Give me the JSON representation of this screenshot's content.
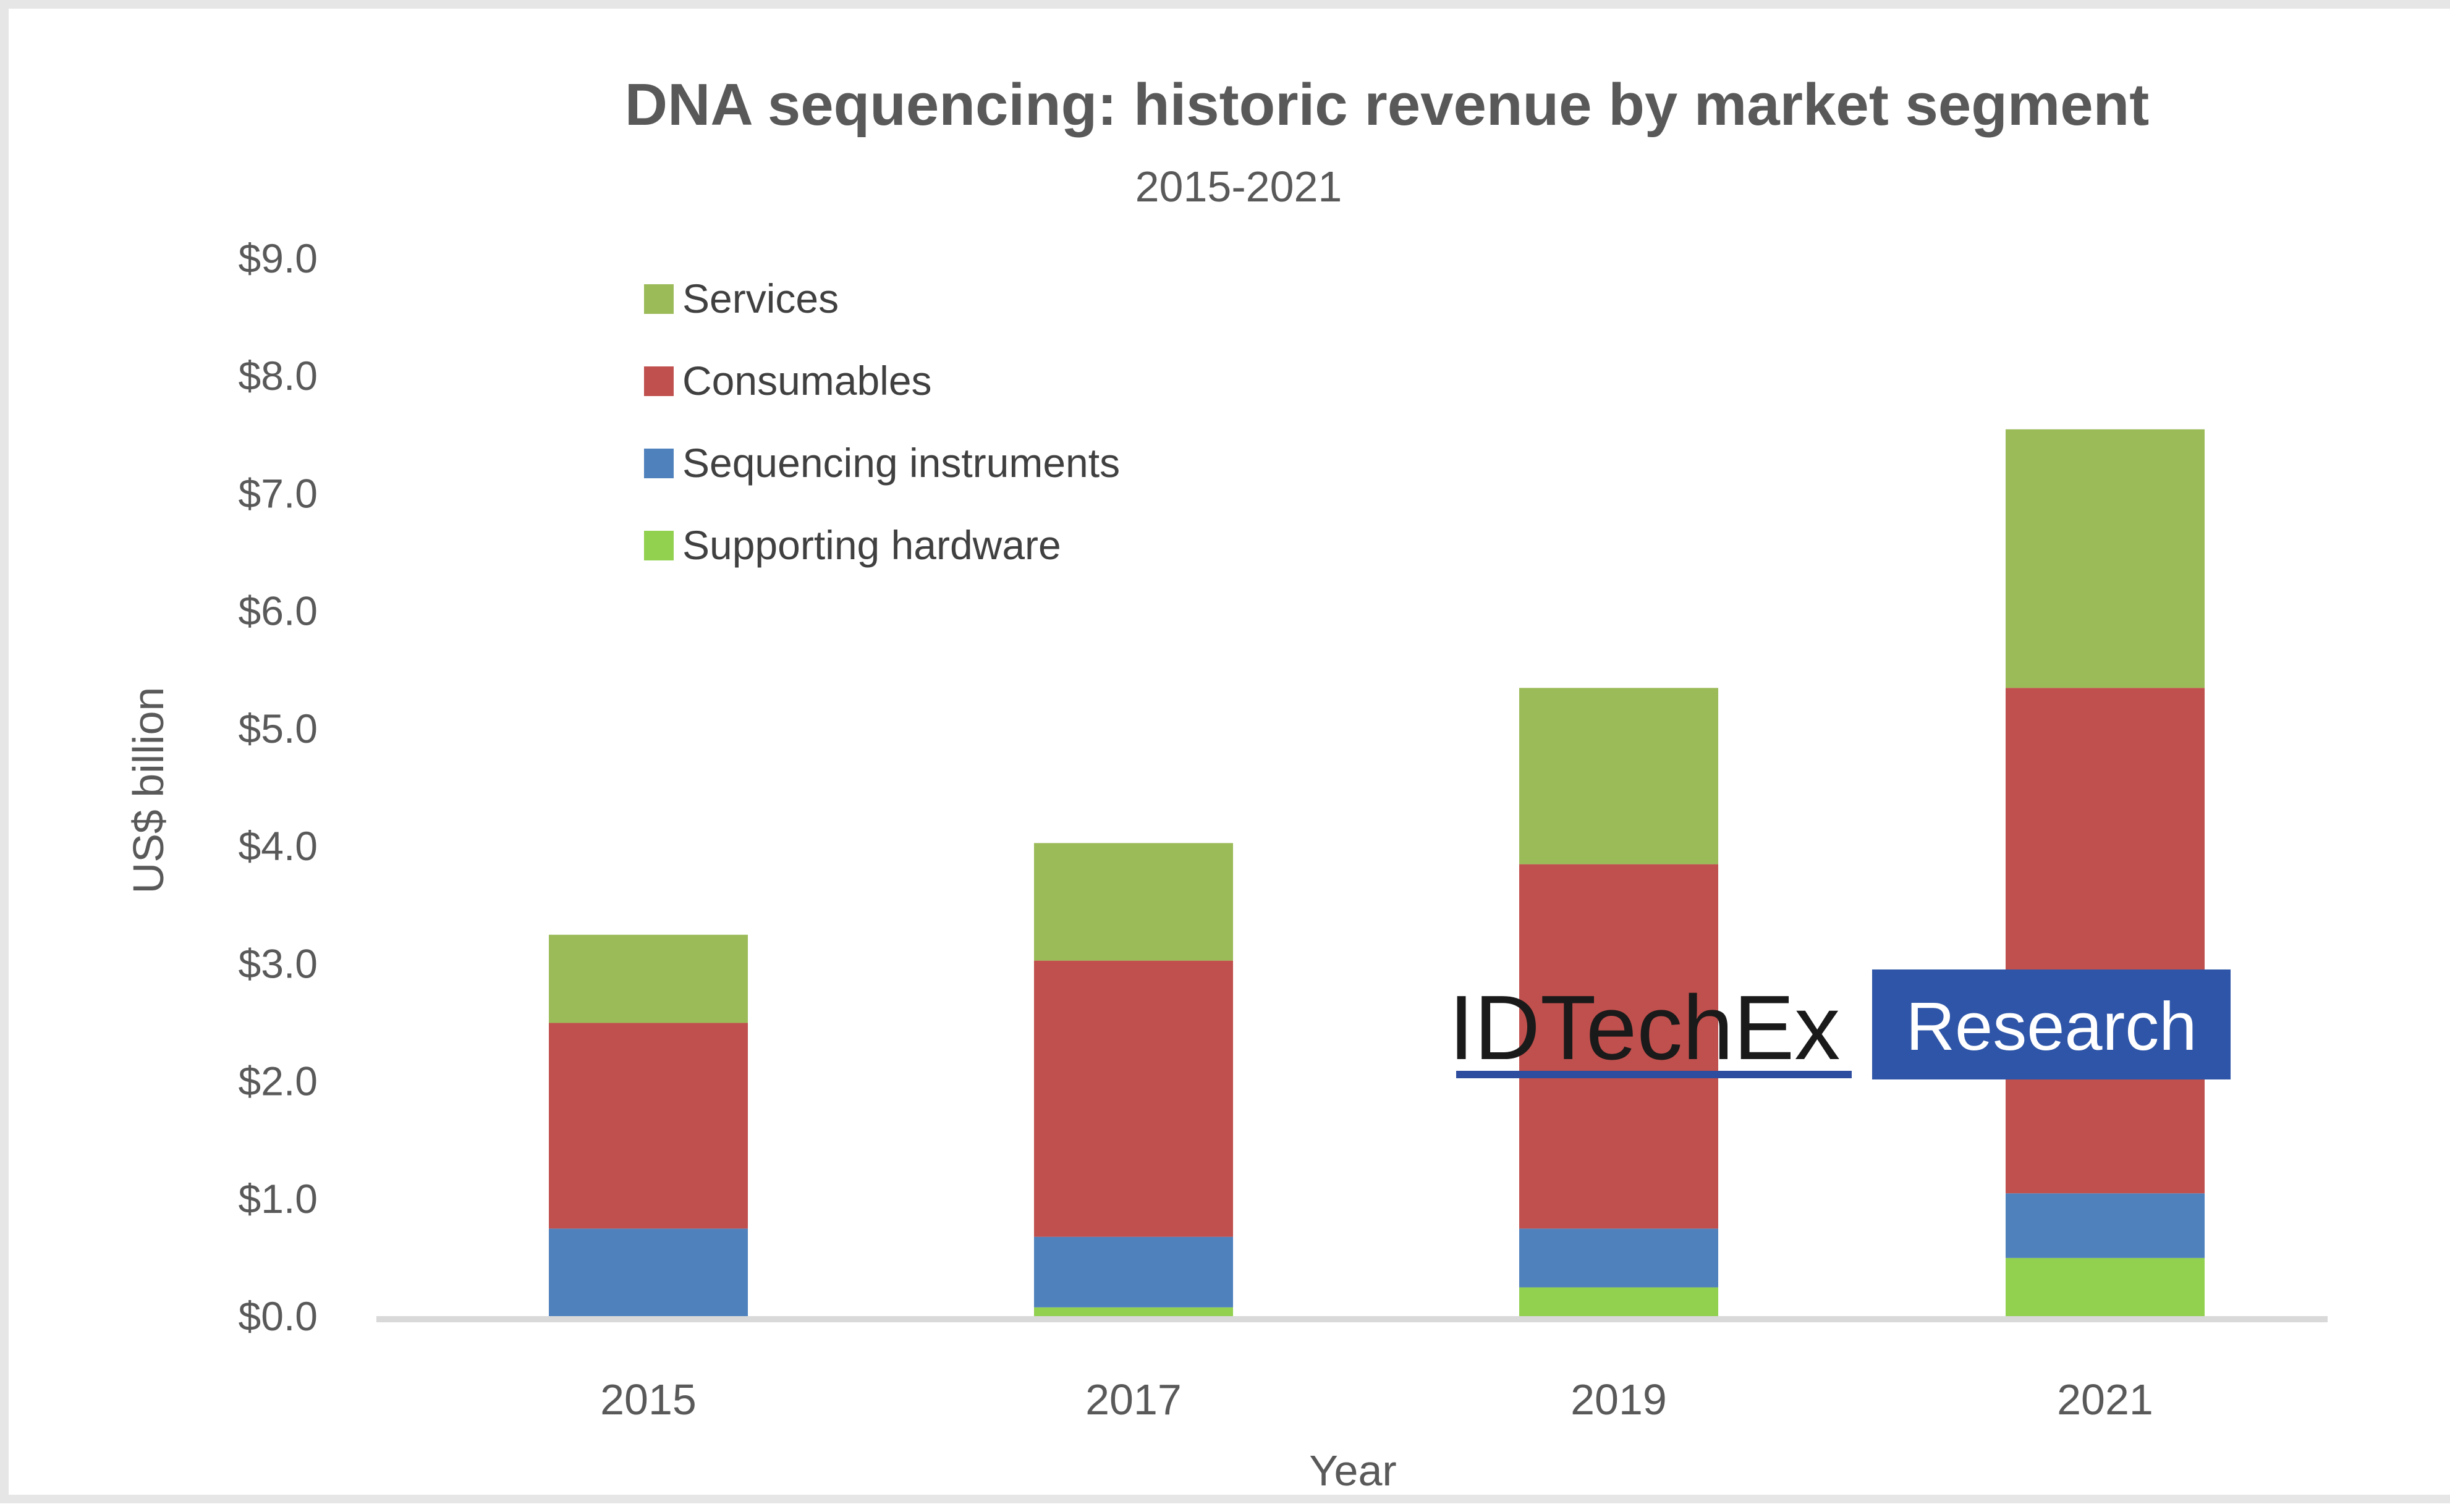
{
  "chart_data": {
    "type": "bar",
    "stacked": true,
    "title": "DNA sequencing: historic revenue by market segment",
    "subtitle": "2015-2021",
    "xlabel": "Year",
    "ylabel": "US$ billion",
    "categories": [
      "2015",
      "2017",
      "2019",
      "2021"
    ],
    "y_tick_labels": [
      "$0.0",
      "$1.0",
      "$2.0",
      "$3.0",
      "$4.0",
      "$5.0",
      "$6.0",
      "$7.0",
      "$8.0",
      "$9.0"
    ],
    "ylim": [
      0,
      9
    ],
    "grid": false,
    "legend_position": "top-left",
    "series": [
      {
        "name": "Supporting hardware",
        "color": "#92d050",
        "values": [
          0.0,
          0.08,
          0.25,
          0.5
        ]
      },
      {
        "name": "Sequencing instruments",
        "color": "#4f81bd",
        "values": [
          0.75,
          0.6,
          0.5,
          0.55
        ]
      },
      {
        "name": "Consumables",
        "color": "#c0504d",
        "values": [
          1.75,
          2.35,
          3.1,
          4.3
        ]
      },
      {
        "name": "Services",
        "color": "#9bbb59",
        "values": [
          0.75,
          1.0,
          1.5,
          2.2
        ]
      }
    ],
    "legend_order": [
      "Services",
      "Consumables",
      "Sequencing instruments",
      "Supporting hardware"
    ]
  },
  "watermark": {
    "left_text": "IDTechEx",
    "right_text": "Research",
    "underline_color": "#2e4d9e",
    "box_color": "#2e55a8"
  }
}
